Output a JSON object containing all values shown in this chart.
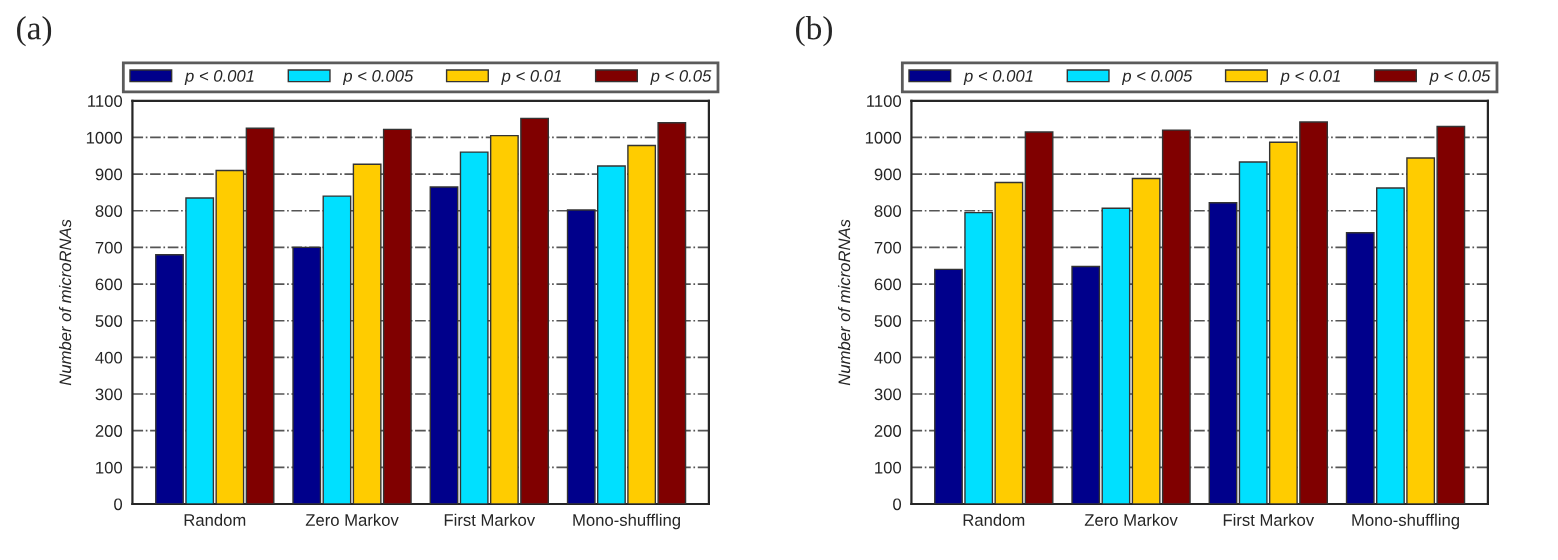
{
  "chart_data": [
    {
      "type": "bar",
      "title": "(a)",
      "ylabel": "Number of microRNAs",
      "categories": [
        "Random",
        "Zero Markov",
        "First Markov",
        "Mono-shuffling"
      ],
      "series": [
        {
          "name": "p < 0.001",
          "color": "#00008b",
          "values": [
            680,
            700,
            865,
            802
          ]
        },
        {
          "name": "p < 0.005",
          "color": "#00e0ff",
          "values": [
            835,
            840,
            960,
            922
          ]
        },
        {
          "name": "p < 0.01",
          "color": "#ffcc00",
          "values": [
            910,
            927,
            1005,
            978
          ]
        },
        {
          "name": "p < 0.05",
          "color": "#800000",
          "values": [
            1025,
            1022,
            1052,
            1040
          ]
        }
      ],
      "ylim": [
        0,
        1100
      ],
      "yticks": [
        0,
        100,
        200,
        300,
        400,
        500,
        600,
        700,
        800,
        900,
        1000,
        1100
      ],
      "grid": "y",
      "legend": "top"
    },
    {
      "type": "bar",
      "title": "(b)",
      "ylabel": "Number of microRNAs",
      "categories": [
        "Random",
        "Zero Markov",
        "First Markov",
        "Mono-shuffling"
      ],
      "series": [
        {
          "name": "p < 0.001",
          "color": "#00008b",
          "values": [
            640,
            648,
            822,
            740
          ]
        },
        {
          "name": "p < 0.005",
          "color": "#00e0ff",
          "values": [
            795,
            807,
            933,
            862
          ]
        },
        {
          "name": "p < 0.01",
          "color": "#ffcc00",
          "values": [
            877,
            888,
            987,
            944
          ]
        },
        {
          "name": "p < 0.05",
          "color": "#800000",
          "values": [
            1015,
            1020,
            1042,
            1030
          ]
        }
      ],
      "ylim": [
        0,
        1100
      ],
      "yticks": [
        0,
        100,
        200,
        300,
        400,
        500,
        600,
        700,
        800,
        900,
        1000,
        1100
      ],
      "grid": "y",
      "legend": "top"
    }
  ]
}
